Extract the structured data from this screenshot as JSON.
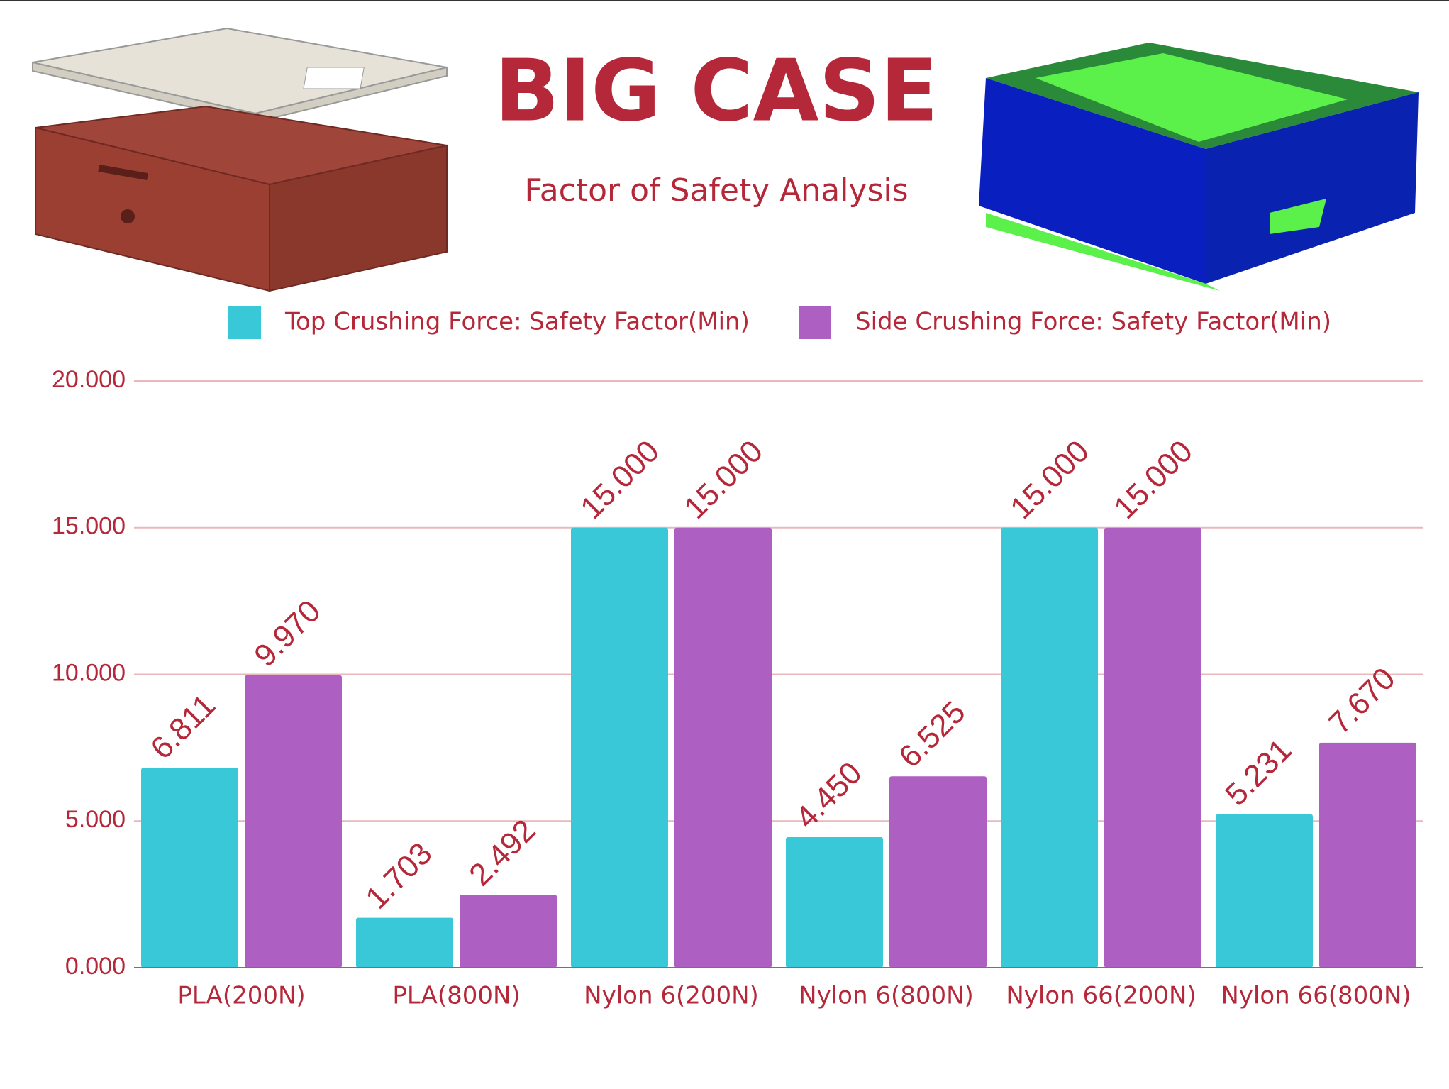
{
  "chart_data": {
    "type": "bar",
    "title": "BIG CASE",
    "subtitle": "Factor of Safety Analysis",
    "categories": [
      "PLA(200N)",
      "PLA(800N)",
      "Nylon 6(200N)",
      "Nylon 6(800N)",
      "Nylon 66(200N)",
      "Nylon 66(800N)"
    ],
    "series": [
      {
        "name": "Top Crushing Force: Safety Factor(Min)",
        "color": "#38c8d8",
        "values": [
          6.811,
          1.703,
          15,
          4.45,
          15,
          5.231
        ],
        "value_labels": [
          "6.811",
          "1.703",
          "15.000",
          "4.450",
          "15.000",
          "5.231"
        ]
      },
      {
        "name": "Side Crushing Force: Safety Factor(Min)",
        "color": "#ad5fc2",
        "values": [
          9.97,
          2.492,
          15,
          6.525,
          15,
          7.67
        ],
        "value_labels": [
          "9.970",
          "2.492",
          "15.000",
          "6.525",
          "15.000",
          "7.670"
        ]
      }
    ],
    "ylim": [
      0,
      20
    ],
    "yticks": [
      {
        "value": 0,
        "label": "0.000"
      },
      {
        "value": 5,
        "label": "5.000"
      },
      {
        "value": 10,
        "label": "10.000"
      },
      {
        "value": 15,
        "label": "15.000"
      },
      {
        "value": 20,
        "label": "20.000"
      }
    ],
    "grid": true
  }
}
